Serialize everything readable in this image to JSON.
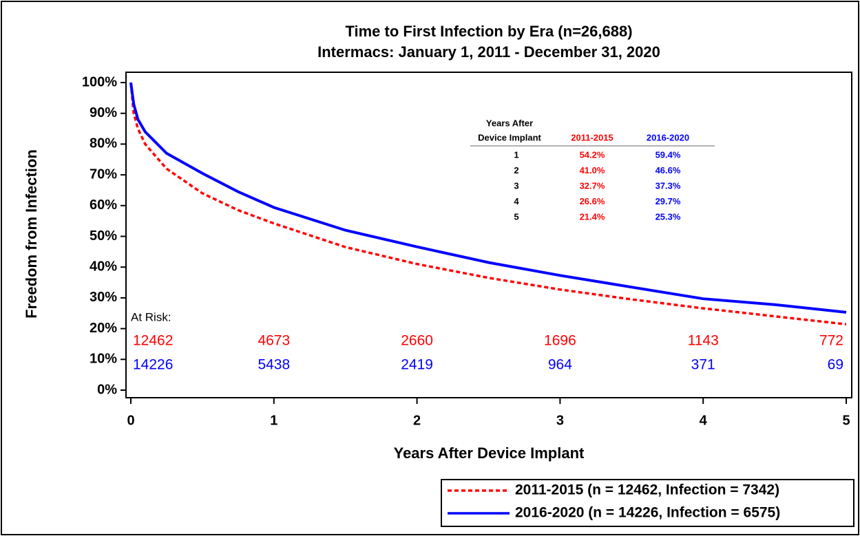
{
  "chart_data": {
    "type": "line",
    "title": "Time to First Infection by Era (n=26,688)",
    "subtitle": "Intermacs: January 1, 2011 - December 31, 2020",
    "y_label": "Freedom from Infection",
    "x_label": "Years After Device Implant",
    "xlim": [
      0,
      5
    ],
    "xticks": [
      0,
      1,
      2,
      3,
      4,
      5
    ],
    "ylim": [
      0,
      100
    ],
    "yticks": [
      {
        "value": 0,
        "label": "0%"
      },
      {
        "value": 10,
        "label": "10%"
      },
      {
        "value": 20,
        "label": "20%"
      },
      {
        "value": 30,
        "label": "30%"
      },
      {
        "value": 40,
        "label": "40%"
      },
      {
        "value": 50,
        "label": "50%"
      },
      {
        "value": 60,
        "label": "60%"
      },
      {
        "value": 70,
        "label": "70%"
      },
      {
        "value": 80,
        "label": "80%"
      },
      {
        "value": 90,
        "label": "90%"
      },
      {
        "value": 100,
        "label": "100%"
      }
    ],
    "legend_position": "bottom-right",
    "series": [
      {
        "name": "2011-2015 (n = 12462, Infection = 7342)",
        "color": "#ff0000",
        "dash": "dashed",
        "x": [
          0,
          0.02,
          0.05,
          0.1,
          0.25,
          0.5,
          0.75,
          1,
          1.5,
          2,
          2.5,
          3,
          3.5,
          4,
          4.5,
          5
        ],
        "values": [
          100,
          90,
          85,
          80,
          72,
          64,
          58.5,
          54.2,
          46.5,
          41,
          36.5,
          32.7,
          29.5,
          26.6,
          24,
          21.4
        ]
      },
      {
        "name": "2016-2020 (n = 14226, Infection = 6575)",
        "color": "#0000ff",
        "dash": "solid",
        "x": [
          0,
          0.02,
          0.05,
          0.1,
          0.25,
          0.5,
          0.75,
          1,
          1.5,
          2,
          2.5,
          3,
          3.5,
          4,
          4.5,
          5
        ],
        "values": [
          100,
          93,
          88,
          84,
          77,
          70.5,
          64.5,
          59.4,
          52,
          46.6,
          41.5,
          37.3,
          33.5,
          29.7,
          27.8,
          25.3
        ]
      }
    ],
    "at_risk": {
      "label": "At Risk:",
      "rows": [
        {
          "color": "#ff0000",
          "values": [
            12462,
            4673,
            2660,
            1696,
            1143,
            772
          ]
        },
        {
          "color": "#0000ff",
          "values": [
            14226,
            5438,
            2419,
            964,
            371,
            69
          ]
        }
      ]
    },
    "table": {
      "header": [
        "Years After",
        "Device Implant",
        "2011-2015",
        "2016-2020"
      ],
      "header_colors": [
        "#000000",
        "#ff0000",
        "#0000ff"
      ],
      "rows": [
        [
          "1",
          "54.2%",
          "59.4%"
        ],
        [
          "2",
          "41.0%",
          "46.6%"
        ],
        [
          "3",
          "32.7%",
          "37.3%"
        ],
        [
          "4",
          "26.6%",
          "29.7%"
        ],
        [
          "5",
          "21.4%",
          "25.3%"
        ]
      ]
    }
  }
}
